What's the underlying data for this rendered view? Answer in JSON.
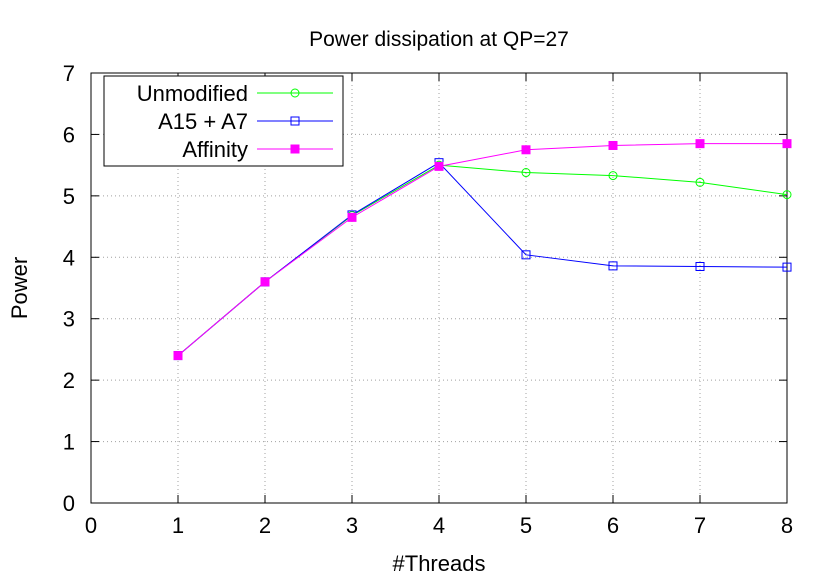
{
  "chart_data": {
    "type": "line",
    "title": "Power dissipation at QP=27",
    "xlabel": "#Threads",
    "ylabel": "Power",
    "xlim": [
      0,
      8
    ],
    "ylim": [
      0,
      7
    ],
    "xticks": [
      "0",
      "1",
      "2",
      "3",
      "4",
      "5",
      "6",
      "7",
      "8"
    ],
    "yticks": [
      "0",
      "1",
      "2",
      "3",
      "4",
      "5",
      "6",
      "7"
    ],
    "grid": true,
    "legend_position": "top-left",
    "x": [
      1,
      2,
      3,
      4,
      5,
      6,
      7,
      8
    ],
    "series": [
      {
        "name": "Unmodified",
        "color": "#00ff00",
        "marker": "open-circle",
        "values": [
          2.4,
          3.6,
          4.68,
          5.5,
          5.38,
          5.33,
          5.22,
          5.02
        ]
      },
      {
        "name": "A15 + A7",
        "color": "#0000ff",
        "marker": "open-square",
        "values": [
          2.4,
          3.6,
          4.69,
          5.54,
          4.04,
          3.86,
          3.85,
          3.84
        ]
      },
      {
        "name": "Affinity",
        "color": "#ff00ff",
        "marker": "filled-square",
        "values": [
          2.4,
          3.6,
          4.65,
          5.48,
          5.75,
          5.82,
          5.85,
          5.85
        ]
      }
    ]
  }
}
